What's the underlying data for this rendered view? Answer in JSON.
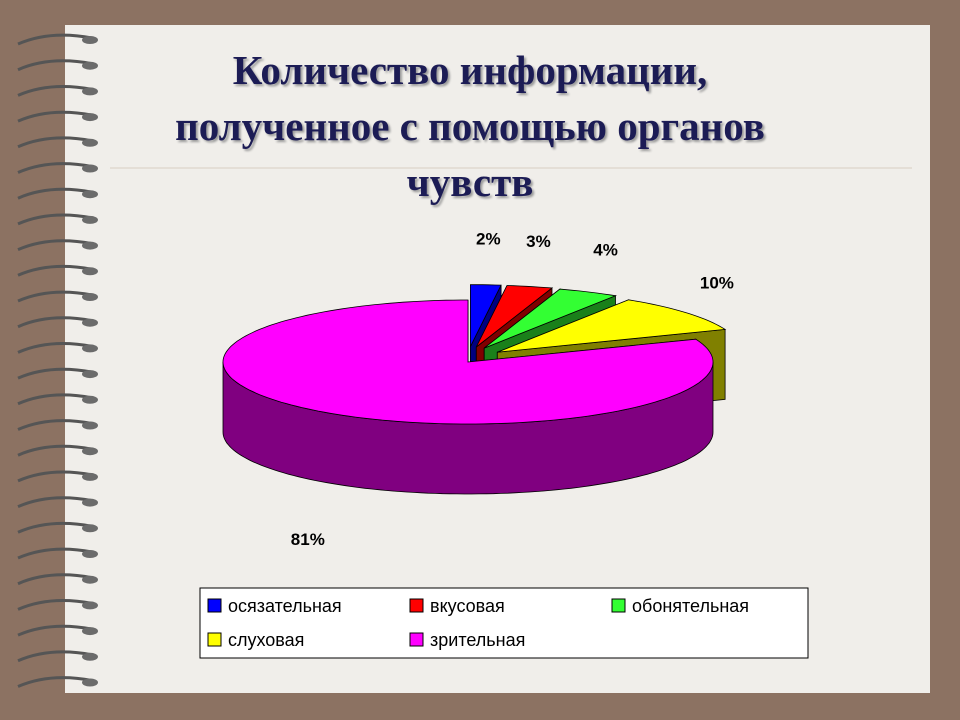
{
  "chart_data": {
    "type": "pie",
    "title": "Количество информации, полученное с помощью органов чувств",
    "categories": [
      "осязательная",
      "вкусовая",
      "обонятельная",
      "слуховая",
      "зрительная"
    ],
    "values": [
      2,
      3,
      4,
      10,
      81
    ],
    "value_labels": [
      "2%",
      "3%",
      "4%",
      "10%",
      "81%"
    ],
    "colors": [
      "#0000ff",
      "#ff0000",
      "#33ff33",
      "#ffff00",
      "#ff00ff"
    ],
    "legend": "bottom"
  }
}
